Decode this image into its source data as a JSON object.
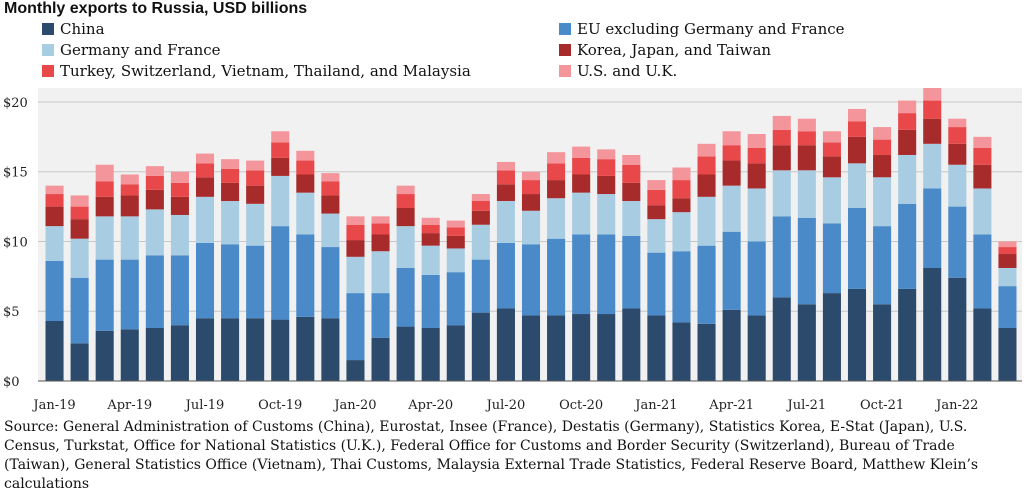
{
  "chart_data": {
    "type": "bar",
    "stacked": true,
    "title": "Monthly exports to Russia, USD billions",
    "ylim": [
      0,
      21
    ],
    "yticks": [
      0,
      5,
      10,
      15,
      20
    ],
    "ytick_labels": [
      "$0",
      "$5",
      "$10",
      "$15",
      "$20"
    ],
    "x_tick_labels": [
      "Jan-19",
      "Apr-19",
      "Jul-19",
      "Oct-19",
      "Jan-20",
      "Apr-20",
      "Jul-20",
      "Oct-20",
      "Jan-21",
      "Apr-21",
      "Jul-21",
      "Oct-21",
      "Jan-22"
    ],
    "categories": [
      "Jan-19",
      "Feb-19",
      "Mar-19",
      "Apr-19",
      "May-19",
      "Jun-19",
      "Jul-19",
      "Aug-19",
      "Sep-19",
      "Oct-19",
      "Nov-19",
      "Dec-19",
      "Jan-20",
      "Feb-20",
      "Mar-20",
      "Apr-20",
      "May-20",
      "Jun-20",
      "Jul-20",
      "Aug-20",
      "Sep-20",
      "Oct-20",
      "Nov-20",
      "Dec-20",
      "Jan-21",
      "Feb-21",
      "Mar-21",
      "Apr-21",
      "May-21",
      "Jun-21",
      "Jul-21",
      "Aug-21",
      "Sep-21",
      "Oct-21",
      "Nov-21",
      "Dec-21",
      "Jan-22",
      "Feb-22",
      "Mar-22"
    ],
    "series": [
      {
        "name": "China",
        "color": "#2c4a6b",
        "values": [
          4.3,
          2.7,
          3.6,
          3.7,
          3.8,
          4.0,
          4.5,
          4.5,
          4.5,
          4.4,
          4.6,
          4.5,
          1.5,
          3.1,
          3.9,
          3.8,
          4.0,
          4.9,
          5.2,
          4.7,
          4.7,
          4.8,
          4.8,
          5.2,
          4.7,
          4.2,
          4.1,
          5.1,
          4.7,
          6.0,
          5.5,
          6.3,
          6.6,
          5.5,
          6.6,
          8.1,
          7.4,
          5.2,
          3.8
        ]
      },
      {
        "name": "EU excluding Germany and France",
        "color": "#4a8ac9",
        "values": [
          4.3,
          4.7,
          5.1,
          5.0,
          5.2,
          5.0,
          5.4,
          5.3,
          5.2,
          6.7,
          5.9,
          5.1,
          4.8,
          3.2,
          4.2,
          3.8,
          3.8,
          3.8,
          4.7,
          5.1,
          5.5,
          5.7,
          5.7,
          5.2,
          4.5,
          5.1,
          5.6,
          5.6,
          5.3,
          5.8,
          6.2,
          5.0,
          5.8,
          5.6,
          6.1,
          5.7,
          5.1,
          5.3,
          3.0
        ]
      },
      {
        "name": "Germany and France",
        "color": "#a8cde3",
        "values": [
          2.5,
          2.8,
          3.1,
          3.1,
          3.3,
          2.9,
          3.3,
          3.1,
          3.0,
          3.6,
          3.0,
          2.4,
          2.6,
          3.0,
          3.0,
          2.1,
          1.7,
          2.5,
          3.0,
          2.4,
          2.9,
          3.0,
          2.9,
          2.5,
          2.4,
          2.8,
          3.5,
          3.3,
          3.8,
          3.3,
          3.4,
          3.3,
          3.2,
          3.5,
          3.5,
          3.2,
          3.0,
          3.3,
          1.3
        ]
      },
      {
        "name": "Korea, Japan, and Taiwan",
        "color": "#a82b2b",
        "values": [
          1.4,
          1.4,
          1.4,
          1.5,
          1.4,
          1.3,
          1.4,
          1.3,
          1.3,
          1.3,
          1.3,
          1.3,
          1.2,
          1.2,
          1.3,
          0.9,
          0.9,
          1.0,
          1.2,
          1.2,
          1.3,
          1.3,
          1.3,
          1.3,
          1.0,
          1.0,
          1.6,
          1.8,
          1.8,
          1.8,
          1.8,
          1.5,
          1.9,
          1.6,
          1.8,
          1.8,
          1.5,
          1.7,
          1.0
        ]
      },
      {
        "name": "Turkey, Switzerland, Vietnam, Thailand, and Malaysia",
        "color": "#e8484a",
        "values": [
          0.9,
          0.9,
          1.1,
          0.8,
          1.0,
          1.0,
          1.0,
          1.0,
          1.1,
          1.1,
          1.0,
          1.0,
          1.1,
          0.8,
          1.0,
          0.6,
          0.6,
          0.7,
          1.0,
          1.0,
          1.2,
          1.2,
          1.2,
          1.3,
          1.1,
          1.3,
          1.3,
          1.1,
          1.1,
          1.1,
          1.0,
          1.0,
          1.1,
          1.1,
          1.2,
          1.3,
          1.2,
          1.2,
          0.5
        ]
      },
      {
        "name": "U.S. and U.K.",
        "color": "#f3959a",
        "values": [
          0.6,
          0.8,
          1.2,
          0.7,
          0.7,
          0.8,
          0.7,
          0.7,
          0.7,
          0.8,
          0.7,
          0.6,
          0.6,
          0.5,
          0.6,
          0.5,
          0.5,
          0.5,
          0.6,
          0.6,
          0.8,
          0.8,
          0.7,
          0.7,
          0.7,
          0.9,
          0.9,
          1.0,
          1.0,
          1.0,
          0.9,
          0.8,
          0.9,
          0.9,
          0.9,
          0.9,
          0.6,
          0.8,
          0.4
        ]
      }
    ]
  },
  "source_text": "Source: General Administration of Customs (China), Eurostat, Insee (France), Destatis (Germany), Statistics Korea, E-Stat (Japan), U.S. Census, Turkstat, Office for National Statistics (U.K.), Federal Office for Customs and Border Security (Switzerland), Bureau of Trade (Taiwan), General Statistics Office (Vietnam), Thai Customs, Malaysia External Trade Statistics, Federal Reserve Board, Matthew Klein’s calculations"
}
